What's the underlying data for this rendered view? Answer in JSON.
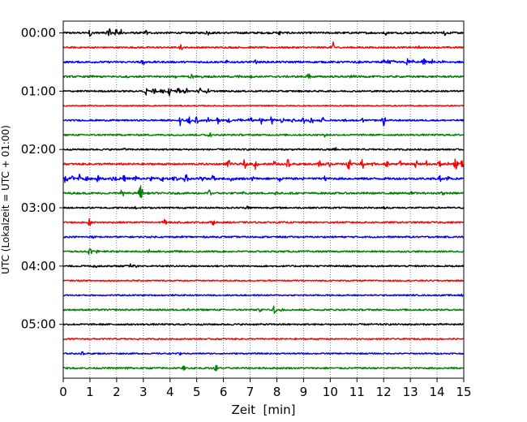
{
  "chart_data": {
    "type": "line",
    "title": "",
    "xlabel": "Zeit  [min]",
    "ylabel": "UTC (Lokalzeit = UTC + 01:00)",
    "xlim": [
      0,
      15
    ],
    "x_ticks": [
      0,
      1,
      2,
      3,
      4,
      5,
      6,
      7,
      8,
      9,
      10,
      11,
      12,
      13,
      14,
      15
    ],
    "x_tick_labels": [
      "0",
      "1",
      "2",
      "3",
      "4",
      "5",
      "6",
      "7",
      "8",
      "9",
      "10",
      "11",
      "12",
      "13",
      "14",
      "15"
    ],
    "y_tick_labels": [
      {
        "row": 0,
        "label": "00:00"
      },
      {
        "row": 4,
        "label": "01:00"
      },
      {
        "row": 8,
        "label": "02:00"
      },
      {
        "row": 12,
        "label": "03:00"
      },
      {
        "row": 16,
        "label": "04:00"
      },
      {
        "row": 20,
        "label": "05:00"
      }
    ],
    "grid": {
      "vertical": true,
      "horizontal": false,
      "style": "dotted"
    },
    "line_colors": [
      "#000000",
      "#ff0000",
      "#0000ff",
      "#008000"
    ],
    "traces": [
      {
        "start": "00:00",
        "color": "#000000",
        "noise": 0.35,
        "events": [
          [
            1.0,
            0.6
          ],
          [
            1.7,
            0.9
          ],
          [
            2.0,
            0.7
          ],
          [
            2.2,
            0.6
          ],
          [
            3.1,
            0.4
          ],
          [
            5.4,
            0.4
          ],
          [
            8.1,
            0.4
          ],
          [
            12.1,
            0.4
          ],
          [
            14.3,
            0.4
          ]
        ]
      },
      {
        "start": "00:15",
        "color": "#ff0000",
        "noise": 0.3,
        "events": [
          [
            4.4,
            0.4
          ],
          [
            10.1,
            0.9
          ],
          [
            13.3,
            0.3
          ]
        ]
      },
      {
        "start": "00:30",
        "color": "#0000ff",
        "noise": 0.35,
        "events": [
          [
            3.0,
            0.5
          ],
          [
            6.1,
            0.3
          ],
          [
            7.2,
            0.3
          ],
          [
            11.0,
            0.3
          ],
          [
            12.0,
            0.5
          ],
          [
            12.2,
            0.5
          ],
          [
            12.4,
            0.4
          ],
          [
            12.9,
            0.6
          ],
          [
            13.1,
            0.5
          ],
          [
            13.5,
            0.6
          ],
          [
            13.8,
            0.4
          ],
          [
            14.2,
            0.4
          ]
        ]
      },
      {
        "start": "00:45",
        "color": "#008000",
        "noise": 0.35,
        "events": [
          [
            1.1,
            0.3
          ],
          [
            2.4,
            0.3
          ],
          [
            4.2,
            0.3
          ],
          [
            4.8,
            0.4
          ],
          [
            5.2,
            0.3
          ],
          [
            6.6,
            0.3
          ],
          [
            7.0,
            0.3
          ],
          [
            9.2,
            0.6
          ],
          [
            10.8,
            0.3
          ]
        ]
      },
      {
        "start": "01:00",
        "color": "#000000",
        "noise": 0.3,
        "events": [
          [
            3.1,
            0.8
          ],
          [
            3.4,
            0.8
          ],
          [
            3.7,
            0.7
          ],
          [
            4.0,
            0.8
          ],
          [
            4.3,
            0.7
          ],
          [
            4.6,
            0.6
          ],
          [
            5.1,
            0.6
          ],
          [
            5.4,
            0.4
          ]
        ]
      },
      {
        "start": "01:15",
        "color": "#ff0000",
        "noise": 0.2,
        "events": []
      },
      {
        "start": "01:30",
        "color": "#0000ff",
        "noise": 0.3,
        "events": [
          [
            4.4,
            1.0
          ],
          [
            4.7,
            0.8
          ],
          [
            5.0,
            0.7
          ],
          [
            5.4,
            0.6
          ],
          [
            5.8,
            0.6
          ],
          [
            6.2,
            0.6
          ],
          [
            6.6,
            0.6
          ],
          [
            7.0,
            0.6
          ],
          [
            7.4,
            0.6
          ],
          [
            7.8,
            0.7
          ],
          [
            8.2,
            0.6
          ],
          [
            8.6,
            0.6
          ],
          [
            9.0,
            0.6
          ],
          [
            9.3,
            0.6
          ],
          [
            9.7,
            0.5
          ],
          [
            10.6,
            0.4
          ],
          [
            11.2,
            0.3
          ],
          [
            12.0,
            1.0
          ]
        ]
      },
      {
        "start": "01:45",
        "color": "#008000",
        "noise": 0.3,
        "events": [
          [
            5.5,
            0.5
          ],
          [
            9.8,
            0.3
          ]
        ]
      },
      {
        "start": "02:00",
        "color": "#000000",
        "noise": 0.3,
        "events": [
          [
            2.3,
            0.3
          ],
          [
            10.2,
            0.3
          ]
        ]
      },
      {
        "start": "02:15",
        "color": "#ff0000",
        "noise": 0.35,
        "events": [
          [
            6.2,
            0.8
          ],
          [
            6.8,
            0.9
          ],
          [
            7.2,
            0.9
          ],
          [
            7.9,
            0.6
          ],
          [
            8.4,
            0.9
          ],
          [
            9.6,
            0.9
          ],
          [
            10.0,
            0.8
          ],
          [
            10.7,
            0.9
          ],
          [
            11.2,
            0.9
          ],
          [
            11.6,
            0.5
          ],
          [
            12.1,
            0.8
          ],
          [
            12.6,
            0.6
          ],
          [
            13.2,
            0.8
          ],
          [
            13.6,
            0.5
          ],
          [
            14.1,
            0.7
          ],
          [
            14.4,
            0.6
          ],
          [
            14.7,
            1.0
          ],
          [
            14.95,
            1.0
          ]
        ]
      },
      {
        "start": "02:30",
        "color": "#0000ff",
        "noise": 0.4,
        "events": [
          [
            0.1,
            0.8
          ],
          [
            0.35,
            0.7
          ],
          [
            0.6,
            0.8
          ],
          [
            0.9,
            0.6
          ],
          [
            1.3,
            0.6
          ],
          [
            1.9,
            0.7
          ],
          [
            2.3,
            0.7
          ],
          [
            2.7,
            0.7
          ],
          [
            3.3,
            0.6
          ],
          [
            3.7,
            0.6
          ],
          [
            4.2,
            0.5
          ],
          [
            4.6,
            0.8
          ],
          [
            5.2,
            0.6
          ],
          [
            5.6,
            0.6
          ],
          [
            6.3,
            0.5
          ],
          [
            7.1,
            0.4
          ],
          [
            8.1,
            0.5
          ],
          [
            9.0,
            0.4
          ],
          [
            9.8,
            0.4
          ],
          [
            14.1,
            0.7
          ],
          [
            14.4,
            0.5
          ]
        ]
      },
      {
        "start": "02:45",
        "color": "#008000",
        "noise": 0.35,
        "events": [
          [
            2.2,
            0.7
          ],
          [
            2.9,
            1.7
          ],
          [
            5.5,
            0.9
          ],
          [
            6.7,
            0.3
          ],
          [
            8.0,
            0.3
          ],
          [
            13.0,
            0.4
          ],
          [
            14.2,
            0.5
          ]
        ]
      },
      {
        "start": "03:00",
        "color": "#000000",
        "noise": 0.3,
        "events": [
          [
            2.7,
            0.4
          ],
          [
            6.9,
            0.3
          ],
          [
            12.0,
            0.3
          ]
        ]
      },
      {
        "start": "03:15",
        "color": "#ff0000",
        "noise": 0.3,
        "events": [
          [
            1.0,
            0.8
          ],
          [
            3.8,
            0.8
          ],
          [
            5.6,
            0.4
          ]
        ]
      },
      {
        "start": "03:30",
        "color": "#0000ff",
        "noise": 0.3,
        "events": [
          [
            1.1,
            0.3
          ],
          [
            4.4,
            0.3
          ]
        ]
      },
      {
        "start": "03:45",
        "color": "#008000",
        "noise": 0.3,
        "events": [
          [
            1.0,
            0.6
          ],
          [
            1.3,
            0.3
          ],
          [
            3.2,
            0.3
          ],
          [
            4.2,
            0.4
          ]
        ]
      },
      {
        "start": "04:00",
        "color": "#000000",
        "noise": 0.3,
        "events": [
          [
            1.2,
            0.3
          ],
          [
            2.5,
            0.4
          ],
          [
            2.7,
            0.3
          ]
        ]
      },
      {
        "start": "04:15",
        "color": "#ff0000",
        "noise": 0.25,
        "events": []
      },
      {
        "start": "04:30",
        "color": "#0000ff",
        "noise": 0.25,
        "events": [
          [
            14.9,
            0.3
          ]
        ]
      },
      {
        "start": "04:45",
        "color": "#008000",
        "noise": 0.3,
        "events": [
          [
            4.7,
            0.3
          ],
          [
            7.4,
            0.4
          ],
          [
            7.9,
            0.8
          ],
          [
            8.2,
            0.4
          ]
        ]
      },
      {
        "start": "05:00",
        "color": "#000000",
        "noise": 0.3,
        "events": []
      },
      {
        "start": "05:15",
        "color": "#ff0000",
        "noise": 0.25,
        "events": []
      },
      {
        "start": "05:30",
        "color": "#0000ff",
        "noise": 0.25,
        "events": [
          [
            0.7,
            0.3
          ],
          [
            4.4,
            0.3
          ]
        ]
      },
      {
        "start": "05:45",
        "color": "#008000",
        "noise": 0.3,
        "events": [
          [
            2.4,
            0.3
          ],
          [
            4.5,
            0.3
          ],
          [
            5.7,
            0.7
          ]
        ]
      }
    ]
  }
}
